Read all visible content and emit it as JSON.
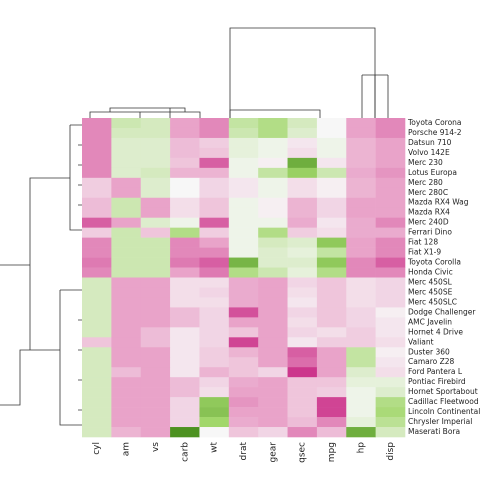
{
  "chart_data": {
    "type": "heatmap",
    "columns": [
      "cyl",
      "am",
      "vs",
      "carb",
      "wt",
      "drat",
      "gear",
      "qsec",
      "mpg",
      "hp",
      "disp"
    ],
    "rows": [
      "Toyota Corona",
      "Porsche 914-2",
      "Datsun 710",
      "Volvo 142E",
      "Merc 230",
      "Lotus Europa",
      "Merc 280",
      "Merc 280C",
      "Mazda RX4 Wag",
      "Mazda RX4",
      "Merc 240D",
      "Ferrari Dino",
      "Fiat 128",
      "Fiat X1-9",
      "Toyota Corolla",
      "Honda Civic",
      "Merc 450SL",
      "Merc 450SE",
      "Merc 450SLC",
      "Dodge Challenger",
      "AMC Javelin",
      "Hornet 4 Drive",
      "Valiant",
      "Duster 360",
      "Camaro Z28",
      "Ford Pantera L",
      "Pontiac Firebird",
      "Hornet Sportabout",
      "Cadillac Fleetwood",
      "Lincoln Continental",
      "Chrysler Imperial",
      "Maserati Bora"
    ],
    "values": [
      [
        -1.2,
        0.5,
        0.4,
        -1,
        -1.2,
        0.6,
        0.8,
        0.4,
        0,
        -1,
        -1.2
      ],
      [
        -1.2,
        0.4,
        0.4,
        -1,
        -1.2,
        0.5,
        0.8,
        0.3,
        0,
        -1,
        -1.2
      ],
      [
        -1.2,
        0.3,
        0.3,
        -0.7,
        -0.5,
        0.2,
        0.1,
        -0.2,
        0.1,
        -0.8,
        -1
      ],
      [
        -1.2,
        0.3,
        0.3,
        -0.7,
        -0.6,
        0.2,
        0.1,
        -0.3,
        0.1,
        -0.8,
        -1
      ],
      [
        -1.2,
        0.3,
        0.3,
        -0.6,
        -1.5,
        0.1,
        -0.1,
        1.6,
        -0.2,
        -0.8,
        -1
      ],
      [
        -1.2,
        0.3,
        0.4,
        -0.8,
        -0.8,
        0.1,
        0.6,
        1.1,
        0.5,
        -0.9,
        -1.1
      ],
      [
        -0.5,
        -1,
        0.3,
        0,
        -0.4,
        -0.2,
        0.1,
        -0.3,
        -0.1,
        -0.8,
        -1
      ],
      [
        -0.5,
        -1,
        0.3,
        0,
        -0.4,
        -0.2,
        0.1,
        -0.3,
        -0.1,
        -0.8,
        -1
      ],
      [
        -0.7,
        0.5,
        -1,
        -0.3,
        -0.6,
        0.1,
        -0.1,
        -0.8,
        -0.4,
        -1,
        -1
      ],
      [
        -0.7,
        0.5,
        -1,
        -0.3,
        -0.6,
        0.1,
        -0.1,
        -0.8,
        -0.4,
        -1,
        -1
      ],
      [
        -1.5,
        -1,
        0.3,
        0.1,
        -1.5,
        0.1,
        0.1,
        -0.9,
        -0.2,
        -0.9,
        -1.2
      ],
      [
        -0.5,
        0.5,
        -0.6,
        0.8,
        -0.5,
        0.1,
        0.8,
        -0.5,
        -0.3,
        -0.9,
        -0.9
      ],
      [
        -1.2,
        0.5,
        0.5,
        -1.2,
        -1,
        0.1,
        0.4,
        0.3,
        1.2,
        -1,
        -1.2
      ],
      [
        -1.2,
        0.5,
        0.5,
        -1.2,
        -1.2,
        0.1,
        0.3,
        0.2,
        0.6,
        -1,
        -1.2
      ],
      [
        -1.3,
        0.5,
        0.5,
        -1.3,
        -1.5,
        1.5,
        0.3,
        0.3,
        1.2,
        -1.2,
        -1.5
      ],
      [
        -1.2,
        0.5,
        0.5,
        -1,
        -1.3,
        0.8,
        0.5,
        0.2,
        0.8,
        -1.2,
        -1.2
      ],
      [
        0.4,
        -1,
        -1,
        -0.3,
        -0.3,
        -0.9,
        -1,
        -0.4,
        -0.6,
        -0.3,
        -0.4
      ],
      [
        0.4,
        -1,
        -1,
        -0.3,
        -0.4,
        -0.9,
        -1,
        -0.3,
        -0.6,
        -0.3,
        -0.4
      ],
      [
        0.4,
        -1,
        -1,
        -0.3,
        -0.3,
        -0.9,
        -1,
        -0.2,
        -0.6,
        -0.3,
        -0.4
      ],
      [
        0.4,
        -1,
        -1,
        -0.7,
        -0.4,
        -1.6,
        -1,
        -0.4,
        -0.6,
        -0.4,
        -0.1
      ],
      [
        0.4,
        -1,
        -1,
        -0.7,
        -0.4,
        -1,
        -1,
        -0.3,
        -0.6,
        -0.4,
        -0.2
      ],
      [
        0.4,
        -1,
        -0.7,
        -0.2,
        -0.4,
        -0.6,
        -1,
        -0.4,
        -0.3,
        -0.5,
        -0.2
      ],
      [
        -0.6,
        -1,
        -0.7,
        -0.2,
        -0.4,
        -1.7,
        -1,
        -0.2,
        -0.5,
        -0.5,
        -0.3
      ],
      [
        0.4,
        -1,
        -1,
        -0.2,
        -0.5,
        -0.8,
        -1,
        -1.5,
        -1,
        0.6,
        -0.1
      ],
      [
        0.4,
        -1,
        -1,
        -0.2,
        -0.5,
        -0.6,
        -1,
        -1.4,
        -1,
        0.6,
        -0.2
      ],
      [
        0.4,
        -0.7,
        -1,
        -0.2,
        -0.8,
        -0.6,
        -0.4,
        -1.8,
        -1,
        0.3,
        -0.3
      ],
      [
        0.4,
        -1,
        -1,
        -0.7,
        -0.4,
        -0.9,
        -1,
        -0.6,
        -0.6,
        0.2,
        0.2
      ],
      [
        0.4,
        -1,
        -1,
        -0.7,
        -0.3,
        -1,
        -1,
        -0.6,
        -0.5,
        0.1,
        0.3
      ],
      [
        0.4,
        -1,
        -1,
        -0.4,
        1.2,
        -1.1,
        -1,
        -0.6,
        -1.7,
        0.1,
        0.8
      ],
      [
        0.4,
        -1,
        -1,
        -0.4,
        1.3,
        -1,
        -1,
        -0.6,
        -1.7,
        0.1,
        0.9
      ],
      [
        0.4,
        -1,
        -1,
        -0.4,
        1,
        -0.9,
        -1,
        -0.7,
        -1.2,
        0.2,
        0.7
      ],
      [
        0.4,
        -0.8,
        -1,
        2,
        0,
        -0.6,
        -0.4,
        -1.2,
        -0.7,
        1.6,
        0.4
      ]
    ],
    "vlim": [
      -2,
      2
    ],
    "colors": [
      "#c51b7d",
      "#e9a3c9",
      "#f7f7f7",
      "#a1d76a",
      "#4d9221"
    ]
  }
}
